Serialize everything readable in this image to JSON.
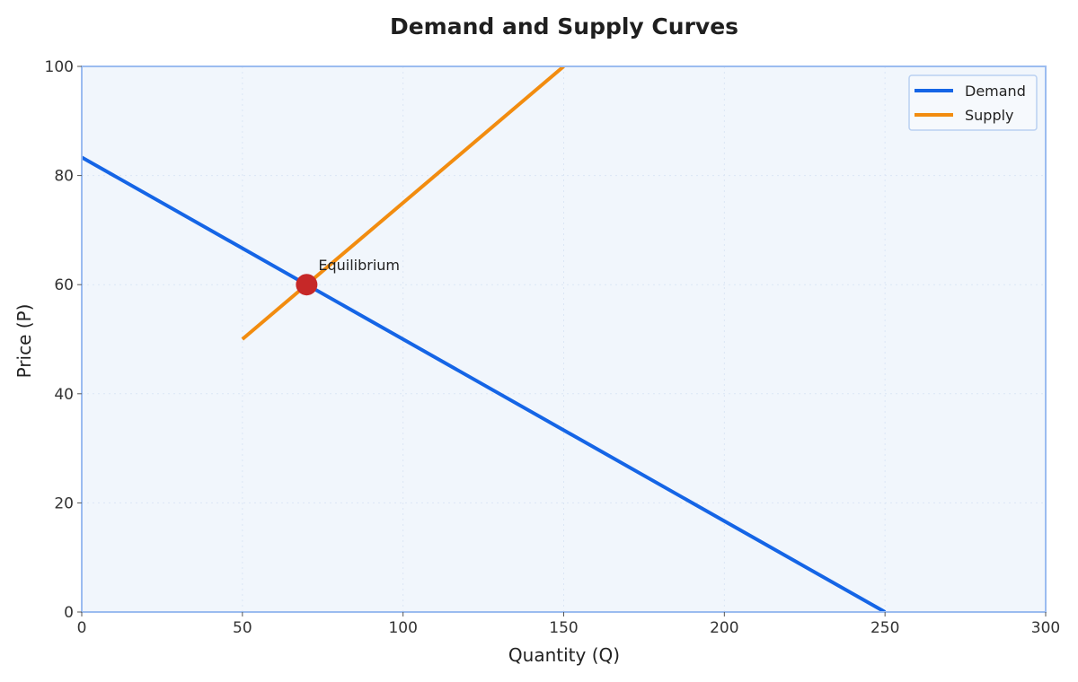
{
  "chart_data": {
    "type": "line",
    "title": "Demand and Supply Curves",
    "xlabel": "Quantity (Q)",
    "ylabel": "Price (P)",
    "xlim": [
      0,
      300
    ],
    "ylim": [
      0,
      100
    ],
    "xticks": [
      0,
      50,
      100,
      150,
      200,
      250,
      300
    ],
    "yticks": [
      0,
      20,
      40,
      60,
      80,
      100
    ],
    "grid": true,
    "legend_position": "top-right",
    "series": [
      {
        "name": "Demand",
        "color": "#1565e6",
        "points": [
          [
            0,
            83.33
          ],
          [
            250,
            0
          ]
        ]
      },
      {
        "name": "Supply",
        "color": "#f28c0f",
        "points": [
          [
            50,
            50
          ],
          [
            150,
            100
          ]
        ]
      }
    ],
    "annotations": [
      {
        "text": "Equilibrium",
        "x": 70,
        "y": 60,
        "marker_color": "#c62828"
      }
    ],
    "colors": {
      "plot_background": "#f1f6fc",
      "frame": "#9bbcf0"
    }
  }
}
